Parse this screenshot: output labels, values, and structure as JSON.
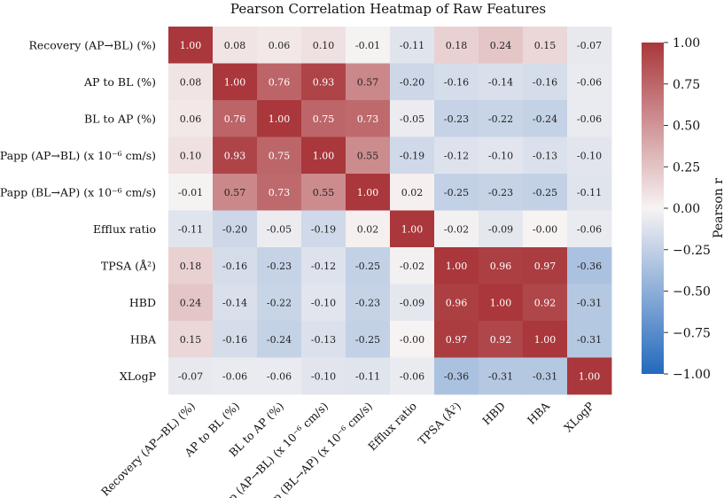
{
  "chart_data": {
    "type": "heatmap",
    "title": "Pearson Correlation Heatmap of Raw Features",
    "labels": [
      "Recovery (AP→BL) (%)",
      "AP to BL (%)",
      "BL to AP (%)",
      "Papp (AP→BL) (x 10⁻⁶ cm/s)",
      "Papp (BL→AP) (x 10⁻⁶ cm/s)",
      "Efflux ratio",
      "TPSA (Å²)",
      "HBD",
      "HBA",
      "XLogP"
    ],
    "matrix": [
      [
        1.0,
        0.08,
        0.06,
        0.1,
        -0.01,
        -0.11,
        0.18,
        0.24,
        0.15,
        -0.07
      ],
      [
        0.08,
        1.0,
        0.76,
        0.93,
        0.57,
        -0.2,
        -0.16,
        -0.14,
        -0.16,
        -0.06
      ],
      [
        0.06,
        0.76,
        1.0,
        0.75,
        0.73,
        -0.05,
        -0.23,
        -0.22,
        -0.24,
        -0.06
      ],
      [
        0.1,
        0.93,
        0.75,
        1.0,
        0.55,
        -0.19,
        -0.12,
        -0.1,
        -0.13,
        -0.1
      ],
      [
        -0.01,
        0.57,
        0.73,
        0.55,
        1.0,
        0.02,
        -0.25,
        -0.23,
        -0.25,
        -0.11
      ],
      [
        -0.11,
        -0.2,
        -0.05,
        -0.19,
        0.02,
        1.0,
        -0.02,
        -0.09,
        -0.0,
        -0.06
      ],
      [
        0.18,
        -0.16,
        -0.23,
        -0.12,
        -0.25,
        -0.02,
        1.0,
        0.96,
        0.97,
        -0.36
      ],
      [
        0.24,
        -0.14,
        -0.22,
        -0.1,
        -0.23,
        -0.09,
        0.96,
        1.0,
        0.92,
        -0.31
      ],
      [
        0.15,
        -0.16,
        -0.24,
        -0.13,
        -0.25,
        -0.0,
        0.97,
        0.92,
        1.0,
        -0.31
      ],
      [
        -0.07,
        -0.06,
        -0.06,
        -0.1,
        -0.11,
        -0.06,
        -0.36,
        -0.31,
        -0.31,
        1.0
      ]
    ],
    "cell_labels": [
      [
        "1.00",
        "0.08",
        "0.06",
        "0.10",
        "-0.01",
        "-0.11",
        "0.18",
        "0.24",
        "0.15",
        "-0.07"
      ],
      [
        "0.08",
        "1.00",
        "0.76",
        "0.93",
        "0.57",
        "-0.20",
        "-0.16",
        "-0.14",
        "-0.16",
        "-0.06"
      ],
      [
        "0.06",
        "0.76",
        "1.00",
        "0.75",
        "0.73",
        "-0.05",
        "-0.23",
        "-0.22",
        "-0.24",
        "-0.06"
      ],
      [
        "0.10",
        "0.93",
        "0.75",
        "1.00",
        "0.55",
        "-0.19",
        "-0.12",
        "-0.10",
        "-0.13",
        "-0.10"
      ],
      [
        "-0.01",
        "0.57",
        "0.73",
        "0.55",
        "1.00",
        "0.02",
        "-0.25",
        "-0.23",
        "-0.25",
        "-0.11"
      ],
      [
        "-0.11",
        "-0.20",
        "-0.05",
        "-0.19",
        "0.02",
        "1.00",
        "-0.02",
        "-0.09",
        "-0.00",
        "-0.06"
      ],
      [
        "0.18",
        "-0.16",
        "-0.23",
        "-0.12",
        "-0.25",
        "-0.02",
        "1.00",
        "0.96",
        "0.97",
        "-0.36"
      ],
      [
        "0.24",
        "-0.14",
        "-0.22",
        "-0.10",
        "-0.23",
        "-0.09",
        "0.96",
        "1.00",
        "0.92",
        "-0.31"
      ],
      [
        "0.15",
        "-0.16",
        "-0.24",
        "-0.13",
        "-0.25",
        "-0.00",
        "0.97",
        "0.92",
        "1.00",
        "-0.31"
      ],
      [
        "-0.07",
        "-0.06",
        "-0.06",
        "-0.10",
        "-0.11",
        "-0.06",
        "-0.36",
        "-0.31",
        "-0.31",
        "1.00"
      ]
    ],
    "colorbar": {
      "label": "Pearson r",
      "range": [
        -1.0,
        1.0
      ],
      "ticks": [
        1.0,
        0.75,
        0.5,
        0.25,
        0.0,
        -0.25,
        -0.5,
        -0.75,
        -1.0
      ],
      "tick_labels": [
        "1.00",
        "0.75",
        "0.50",
        "0.25",
        "0.00",
        "−0.25",
        "−0.50",
        "−0.75",
        "−1.00"
      ],
      "colormap": "vlag",
      "colors": {
        "negative": "#2369bd",
        "neutral": "#f7f3f3",
        "positive": "#a9373b"
      }
    }
  }
}
